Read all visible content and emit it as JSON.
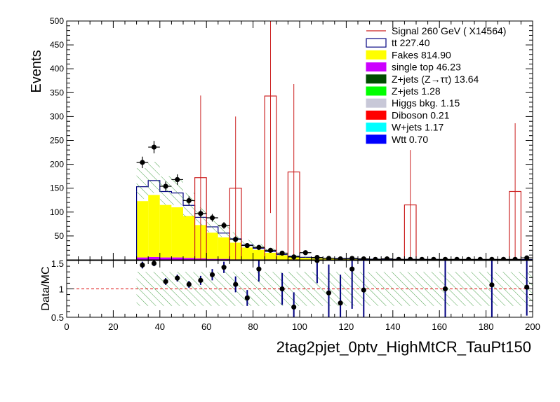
{
  "colors": {
    "ttbar": "#000080",
    "fakes": "#ffff00",
    "singletop": "#cc00ff",
    "ztautau": "#004d00",
    "zjets": "#00ff00",
    "higgs": "#c8c8d8",
    "diboson": "#ff0000",
    "wjets": "#00ffff",
    "wtt": "#0000ff",
    "signal": "#cc2222",
    "data": "#000000",
    "uncertainty": "#3a9a3a"
  },
  "chart_data": [
    {
      "type": "bar",
      "panel": "main",
      "ylabel": "Events",
      "ylim": [
        0,
        500
      ],
      "xlim": [
        0,
        200
      ],
      "yticks": [
        50,
        100,
        150,
        200,
        250,
        300,
        350,
        400,
        450,
        500
      ],
      "legend_placement": "top-right",
      "legend": [
        {
          "key": "signal",
          "label": "Signal 260 GeV ( X14564)",
          "style": "line"
        },
        {
          "key": "ttbar",
          "label": "tt 227.40",
          "style": "box-outline"
        },
        {
          "key": "fakes",
          "label": "Fakes 814.90",
          "style": "box"
        },
        {
          "key": "singletop",
          "label": "single top 46.23",
          "style": "box"
        },
        {
          "key": "ztautau",
          "label": "Z+jets (Z→ττ) 13.64",
          "style": "box"
        },
        {
          "key": "zjets",
          "label": "Z+jets 1.28",
          "style": "box"
        },
        {
          "key": "higgs",
          "label": "Higgs bkg. 1.15",
          "style": "box"
        },
        {
          "key": "diboson",
          "label": "Diboson 0.21",
          "style": "box"
        },
        {
          "key": "wjets",
          "label": "W+jets 1.17",
          "style": "box"
        },
        {
          "key": "wtt",
          "label": "Wtt 0.70",
          "style": "box"
        }
      ],
      "bin_edges": [
        30,
        35,
        40,
        45,
        50,
        55,
        60,
        65,
        70,
        75,
        80,
        85,
        90,
        95,
        100,
        105,
        110,
        115,
        120,
        125,
        130,
        135,
        140,
        145,
        150,
        155,
        160,
        165,
        170,
        175,
        180,
        185,
        190,
        195,
        200
      ],
      "stack": {
        "singletop": [
          5,
          6,
          5,
          5,
          4,
          3,
          2,
          2,
          1,
          1,
          1,
          1,
          0.5,
          0.5,
          0.3,
          0.3,
          0.2,
          0.2,
          0.2,
          0.1,
          0.1,
          0.1,
          0.1,
          0.1,
          0.1,
          0.1,
          0.1,
          0.1,
          0.1,
          0.1,
          0.1,
          0.1,
          0.1,
          0.1
        ],
        "fakes": [
          118,
          130,
          110,
          105,
          88,
          70,
          55,
          45,
          35,
          25,
          20,
          14,
          9,
          6,
          4,
          3,
          2.5,
          2,
          1.5,
          1.2,
          1,
          0.8,
          0.6,
          0.5,
          0.5,
          0.4,
          0.3,
          0.3,
          0.3,
          0.2,
          0.2,
          0.2,
          0.2,
          0.2
        ],
        "ttbar": [
          30,
          30,
          28,
          30,
          22,
          16,
          12,
          9,
          8,
          5,
          3,
          2,
          1.5,
          1,
          1,
          0.8,
          0.6,
          0.5,
          0.4,
          0.4,
          0.3,
          0.3,
          0.3,
          0.3,
          0.2,
          0.2,
          0.2,
          0.2,
          0.2,
          0.2,
          0.2,
          0.2,
          0.2,
          0.2
        ]
      },
      "uncertainty_band": [
        [
          128,
          192
        ],
        [
          140,
          205
        ],
        [
          115,
          175
        ],
        [
          115,
          175
        ],
        [
          90,
          140
        ],
        [
          72,
          110
        ],
        [
          58,
          88
        ],
        [
          48,
          74
        ],
        [
          37,
          58
        ],
        [
          27,
          42
        ],
        [
          20,
          33
        ],
        [
          14,
          24
        ],
        [
          9,
          15
        ],
        [
          6,
          10
        ],
        [
          4,
          8
        ],
        [
          3,
          6
        ],
        [
          2,
          5
        ],
        [
          2,
          4
        ],
        [
          1.5,
          3.5
        ],
        [
          1,
          3
        ],
        [
          1,
          2.5
        ],
        [
          0.8,
          2
        ],
        [
          0.6,
          1.8
        ],
        [
          0.5,
          1.6
        ],
        [
          0.5,
          1.5
        ],
        [
          0.4,
          1.4
        ],
        [
          0.3,
          1.3
        ],
        [
          0.3,
          1.2
        ],
        [
          0.3,
          1.2
        ],
        [
          0.2,
          1.1
        ],
        [
          0.2,
          1.1
        ],
        [
          0.2,
          1.1
        ],
        [
          0.2,
          1.1
        ],
        [
          0.2,
          1.1
        ]
      ],
      "signal": [
        {
          "x0": 55,
          "x1": 60,
          "y": 172,
          "err": 172
        },
        {
          "x0": 70,
          "x1": 75,
          "y": 150,
          "err": 150
        },
        {
          "x0": 85,
          "x1": 90,
          "y": 343,
          "err": 245
        },
        {
          "x0": 95,
          "x1": 100,
          "y": 184,
          "err": 184
        },
        {
          "x0": 145,
          "x1": 150,
          "y": 115,
          "err": 115
        },
        {
          "x0": 190,
          "x1": 195,
          "y": 143,
          "err": 143
        }
      ],
      "data_points": [
        {
          "x": 32.5,
          "y": 204,
          "err": 12
        },
        {
          "x": 37.5,
          "y": 236,
          "err": 13
        },
        {
          "x": 42.5,
          "y": 154,
          "err": 10
        },
        {
          "x": 47.5,
          "y": 168,
          "err": 11
        },
        {
          "x": 52.5,
          "y": 124,
          "err": 9
        },
        {
          "x": 57.5,
          "y": 97,
          "err": 8
        },
        {
          "x": 62.5,
          "y": 88,
          "err": 8
        },
        {
          "x": 67.5,
          "y": 72,
          "err": 7
        },
        {
          "x": 72.5,
          "y": 43,
          "err": 6
        },
        {
          "x": 77.5,
          "y": 30,
          "err": 5
        },
        {
          "x": 82.5,
          "y": 26,
          "err": 5
        },
        {
          "x": 87.5,
          "y": 20,
          "err": 4
        },
        {
          "x": 92.5,
          "y": 14,
          "err": 3
        },
        {
          "x": 97.5,
          "y": 6,
          "err": 2
        },
        {
          "x": 102.5,
          "y": 15,
          "err": 4
        },
        {
          "x": 107.5,
          "y": 5,
          "err": 2
        },
        {
          "x": 112.5,
          "y": 3,
          "err": 2
        },
        {
          "x": 117.5,
          "y": 2,
          "err": 1.5
        },
        {
          "x": 122.5,
          "y": 3,
          "err": 1.5
        },
        {
          "x": 127.5,
          "y": 2,
          "err": 1.5
        },
        {
          "x": 132.5,
          "y": 1,
          "err": 1
        },
        {
          "x": 137.5,
          "y": 2,
          "err": 1
        },
        {
          "x": 142.5,
          "y": 1,
          "err": 1
        },
        {
          "x": 147.5,
          "y": 1,
          "err": 1
        },
        {
          "x": 152.5,
          "y": 1,
          "err": 1
        },
        {
          "x": 157.5,
          "y": 1,
          "err": 1
        },
        {
          "x": 162.5,
          "y": 1,
          "err": 1
        },
        {
          "x": 167.5,
          "y": 1,
          "err": 1
        },
        {
          "x": 172.5,
          "y": 1,
          "err": 1
        },
        {
          "x": 177.5,
          "y": 1,
          "err": 1
        },
        {
          "x": 182.5,
          "y": 1,
          "err": 1
        },
        {
          "x": 187.5,
          "y": 1,
          "err": 1
        },
        {
          "x": 192.5,
          "y": 1,
          "err": 1
        },
        {
          "x": 197.5,
          "y": 4,
          "err": 2
        }
      ]
    },
    {
      "type": "scatter",
      "panel": "ratio",
      "ylabel": "Data/MC",
      "xlabel": "2tag2pjet_0ptv_HighMtCR_TauPt150",
      "ylim": [
        0.5,
        1.5
      ],
      "xlim": [
        0,
        200
      ],
      "yticks": [
        0.5,
        1,
        1.5
      ],
      "xticks": [
        0,
        20,
        40,
        60,
        80,
        100,
        120,
        140,
        160,
        180,
        200
      ],
      "reference_line": 1,
      "band_range": [
        30,
        200
      ],
      "band": [
        0.7,
        1.3
      ],
      "points": [
        {
          "x": 32.5,
          "y": 1.42,
          "err": 0.06
        },
        {
          "x": 37.5,
          "y": 1.45,
          "err": 0.05
        },
        {
          "x": 42.5,
          "y": 1.13,
          "err": 0.06
        },
        {
          "x": 47.5,
          "y": 1.19,
          "err": 0.06
        },
        {
          "x": 52.5,
          "y": 1.08,
          "err": 0.06
        },
        {
          "x": 57.5,
          "y": 1.15,
          "err": 0.08
        },
        {
          "x": 62.5,
          "y": 1.25,
          "err": 0.1
        },
        {
          "x": 67.5,
          "y": 1.38,
          "err": 0.1
        },
        {
          "x": 72.5,
          "y": 1.08,
          "err": 0.14
        },
        {
          "x": 77.5,
          "y": 0.84,
          "err": 0.14
        },
        {
          "x": 82.5,
          "y": 1.35,
          "err": 0.22
        },
        {
          "x": 92.5,
          "y": 1.0,
          "err": 0.28
        },
        {
          "x": 97.5,
          "y": 0.68,
          "err": 0.26
        },
        {
          "x": 107.5,
          "y": 1.5,
          "err": 0.4
        },
        {
          "x": 112.5,
          "y": 0.93,
          "err": 0.5
        },
        {
          "x": 117.5,
          "y": 0.75,
          "err": 0.5
        },
        {
          "x": 122.5,
          "y": 1.35,
          "err": 0.7
        },
        {
          "x": 127.5,
          "y": 0.98,
          "err": 0.8
        },
        {
          "x": 162.5,
          "y": 1.0,
          "err": 1.0
        },
        {
          "x": 182.5,
          "y": 1.07,
          "err": 1.0
        },
        {
          "x": 197.5,
          "y": 1.03,
          "err": 0.5
        }
      ]
    }
  ]
}
